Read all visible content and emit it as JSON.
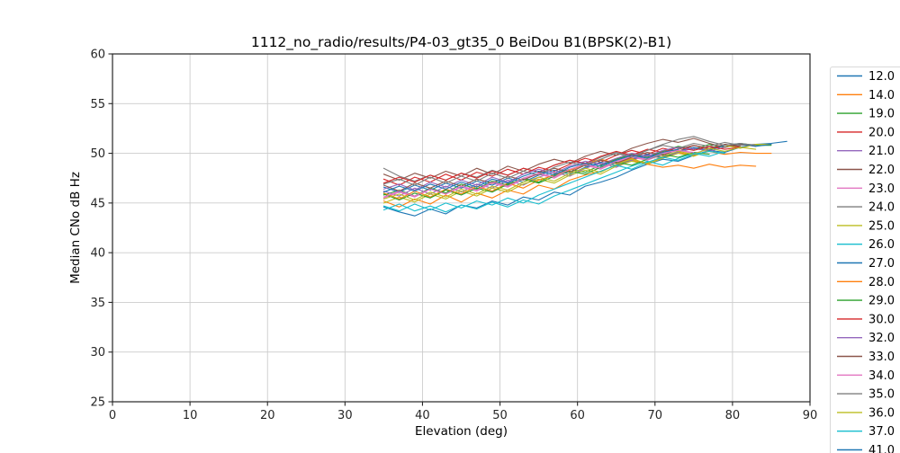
{
  "figure": {
    "background": "#ffffff"
  },
  "chart_data": {
    "type": "line",
    "title": "1112_no_radio/results/P4-03_gt35_0 BeiDou B1(BPSK(2)-B1)",
    "xlabel": "Elevation (deg)",
    "ylabel": "Median CNo dB Hz",
    "xlim": [
      0,
      90
    ],
    "ylim": [
      25,
      60
    ],
    "xticks": [
      0,
      10,
      20,
      30,
      40,
      50,
      60,
      70,
      80,
      90
    ],
    "yticks": [
      25,
      30,
      35,
      40,
      45,
      50,
      55,
      60
    ],
    "grid": true,
    "grid_color": "#cccccc",
    "spine_color": "#262626",
    "legend_position": "outside-right",
    "legend_border_color": "#d9d9d9",
    "legend_clipped_at_bottom": true,
    "x_start": 35,
    "x_step": 2,
    "series": [
      {
        "name": "12.0",
        "color": "#1f77b4",
        "values": [
          44.6,
          44.1,
          43.7,
          44.4,
          43.9,
          44.8,
          44.5,
          45.2,
          44.8,
          45.6,
          45.3,
          46.1,
          45.8,
          46.7,
          47.1,
          47.6,
          48.3,
          48.9,
          49.4,
          49.2,
          49.8,
          50.3,
          50.1,
          50.6,
          50.9,
          51.0,
          51.2
        ]
      },
      {
        "name": "14.0",
        "color": "#ff7f0e",
        "values": [
          45.2,
          44.6,
          45.4,
          44.9,
          45.8,
          45.1,
          46.0,
          45.5,
          46.3,
          45.9,
          46.8,
          46.4,
          47.3,
          47.8,
          48.2,
          48.8,
          49.3,
          48.9,
          49.6,
          50.1,
          49.8,
          50.2,
          49.9,
          50.1,
          50.0,
          50.0
        ]
      },
      {
        "name": "19.0",
        "color": "#2ca02c",
        "values": [
          45.8,
          46.3,
          45.7,
          46.5,
          46.0,
          46.9,
          46.4,
          47.2,
          46.8,
          47.5,
          47.1,
          47.9,
          48.4,
          48.1,
          48.8,
          49.4,
          49.9,
          49.6,
          50.2,
          50.7,
          50.4,
          50.9,
          50.6,
          51.0,
          50.8,
          50.8
        ]
      },
      {
        "name": "20.0",
        "color": "#d62728",
        "values": [
          47.4,
          46.8,
          47.6,
          47.1,
          47.9,
          47.3,
          48.1,
          47.7,
          48.4,
          47.9,
          48.6,
          48.2,
          48.9,
          49.5,
          49.1,
          49.8,
          50.3,
          49.9,
          50.5,
          50.2,
          50.8,
          50.4,
          50.9,
          50.6
        ]
      },
      {
        "name": "21.0",
        "color": "#9467bd",
        "values": [
          46.2,
          45.7,
          46.5,
          45.9,
          46.7,
          46.1,
          46.9,
          46.5,
          47.3,
          46.8,
          47.6,
          48.1,
          47.7,
          48.5,
          49.0,
          48.6,
          49.3,
          49.8,
          49.5,
          50.1,
          50.5,
          50.2,
          50.6
        ]
      },
      {
        "name": "22.0",
        "color": "#8c564b",
        "values": [
          47.9,
          47.3,
          48.0,
          47.5,
          48.2,
          47.7,
          48.5,
          47.9,
          48.7,
          48.2,
          48.9,
          49.4,
          49.0,
          49.7,
          50.2,
          49.8,
          50.5,
          51.0,
          51.4,
          51.1,
          51.5,
          51.0,
          50.6,
          50.9,
          50.7
        ]
      },
      {
        "name": "23.0",
        "color": "#e377c2",
        "values": [
          45.5,
          46.1,
          45.6,
          46.4,
          45.9,
          46.6,
          46.2,
          47.0,
          46.6,
          47.4,
          47.9,
          47.5,
          48.3,
          48.8,
          48.4,
          49.1,
          49.6,
          49.3,
          49.9,
          50.3,
          50.0,
          50.4
        ]
      },
      {
        "name": "24.0",
        "color": "#7f7f7f",
        "values": [
          48.5,
          47.7,
          47.2,
          47.8,
          47.3,
          48.0,
          47.6,
          48.3,
          47.8,
          48.5,
          48.1,
          48.8,
          49.3,
          48.9,
          49.6,
          50.1,
          49.7,
          50.3,
          50.8,
          50.5,
          51.0,
          50.7,
          51.1,
          50.8,
          50.9
        ]
      },
      {
        "name": "25.0",
        "color": "#bcbd22",
        "values": [
          45.0,
          45.6,
          45.1,
          45.9,
          45.4,
          46.2,
          45.7,
          46.5,
          46.1,
          46.9,
          47.4,
          47.0,
          47.8,
          48.3,
          47.9,
          48.7,
          49.2,
          48.9,
          49.5,
          50.0,
          49.7,
          50.3,
          50.8,
          50.5,
          50.9,
          50.9
        ]
      },
      {
        "name": "26.0",
        "color": "#17becf",
        "values": [
          44.3,
          44.9,
          44.2,
          44.7,
          44.1,
          44.8,
          44.4,
          45.1,
          44.6,
          45.3,
          44.9,
          45.7,
          46.3,
          46.9,
          47.5,
          48.1,
          48.7,
          49.2,
          48.8,
          49.5,
          50.0,
          49.7,
          50.2
        ]
      },
      {
        "name": "27.0",
        "color": "#1f77b4",
        "values": [
          46.6,
          46.1,
          46.8,
          46.3,
          47.0,
          46.5,
          47.2,
          46.8,
          47.5,
          47.1,
          47.8,
          48.3,
          47.9,
          48.6,
          49.1,
          48.8,
          49.4,
          49.9,
          49.6,
          50.2,
          50.6,
          50.3,
          50.8,
          51.0,
          50.7,
          50.9
        ]
      },
      {
        "name": "28.0",
        "color": "#ff7f0e",
        "values": [
          46.0,
          45.4,
          46.2,
          45.6,
          46.4,
          45.9,
          46.7,
          46.2,
          47.0,
          46.5,
          47.3,
          47.8,
          48.3,
          48.9,
          49.4,
          49.0,
          49.5,
          48.9,
          48.6,
          48.8,
          48.5,
          48.9,
          48.6,
          48.8,
          48.7
        ]
      },
      {
        "name": "29.0",
        "color": "#2ca02c",
        "values": [
          45.9,
          45.3,
          46.0,
          45.5,
          46.3,
          45.8,
          46.5,
          46.1,
          46.9,
          47.4,
          47.0,
          47.7,
          48.2,
          47.9,
          48.6,
          49.1,
          48.8,
          49.4,
          49.9,
          49.6,
          50.1,
          49.9
        ]
      },
      {
        "name": "30.0",
        "color": "#d62728",
        "values": [
          47.0,
          47.6,
          47.1,
          47.8,
          47.3,
          48.0,
          47.5,
          48.2,
          47.8,
          48.5,
          48.1,
          48.8,
          49.3,
          49.0,
          49.7,
          50.2,
          49.8,
          50.4,
          50.1,
          50.6,
          50.3,
          50.7,
          50.4,
          50.6
        ]
      },
      {
        "name": "32.0",
        "color": "#9467bd",
        "values": [
          46.4,
          46.9,
          46.3,
          47.1,
          46.6,
          47.3,
          46.8,
          47.6,
          47.1,
          47.9,
          48.4,
          48.0,
          48.7,
          49.2,
          48.9,
          49.5,
          50.0,
          49.7,
          50.3,
          50.6,
          50.4
        ]
      },
      {
        "name": "33.0",
        "color": "#8c564b",
        "values": [
          46.8,
          46.2,
          47.0,
          46.5,
          47.2,
          46.7,
          47.4,
          47.0,
          47.7,
          47.3,
          48.0,
          48.5,
          48.1,
          48.8,
          49.3,
          49.0,
          49.6,
          50.1,
          49.8,
          50.4,
          50.8,
          50.5,
          50.9,
          50.7
        ]
      },
      {
        "name": "34.0",
        "color": "#e377c2",
        "values": [
          45.6,
          46.2,
          45.7,
          46.4,
          45.9,
          46.7,
          46.3,
          47.1,
          46.7,
          47.5,
          48.0,
          47.6,
          48.4,
          48.9,
          48.5,
          49.2,
          49.7,
          49.4,
          50.0,
          50.3,
          50.1
        ]
      },
      {
        "name": "35.0",
        "color": "#7f7f7f",
        "values": [
          46.9,
          47.4,
          46.8,
          47.6,
          47.0,
          47.7,
          47.2,
          48.0,
          47.5,
          48.2,
          47.8,
          48.6,
          49.1,
          48.7,
          49.4,
          50.0,
          49.6,
          50.3,
          50.9,
          51.4,
          51.7,
          51.2,
          50.8,
          51.0,
          50.8
        ]
      },
      {
        "name": "36.0",
        "color": "#bcbd22",
        "values": [
          45.4,
          45.9,
          45.3,
          46.1,
          45.6,
          46.4,
          45.9,
          46.7,
          46.3,
          47.1,
          47.6,
          47.2,
          48.0,
          48.5,
          48.1,
          48.9,
          49.4,
          49.0,
          49.7,
          50.2,
          49.9,
          50.5,
          50.2,
          50.6,
          50.4
        ]
      },
      {
        "name": "37.0",
        "color": "#17becf",
        "values": [
          44.7,
          44.2,
          44.9,
          44.3,
          45.0,
          44.5,
          45.2,
          44.8,
          45.5,
          45.0,
          45.8,
          46.4,
          47.0,
          47.6,
          48.2,
          48.8,
          48.4,
          49.1,
          49.6,
          49.3,
          49.9,
          50.2,
          50.0
        ]
      },
      {
        "name": "41.0",
        "color": "#1f77b4",
        "values": [
          46.1,
          46.7,
          46.2,
          46.9,
          46.4,
          47.1,
          46.6,
          47.4,
          47.0,
          47.7,
          48.2,
          47.8,
          48.6,
          49.0,
          48.7,
          49.3,
          49.8,
          49.5,
          50.1,
          50.4
        ]
      }
    ]
  }
}
